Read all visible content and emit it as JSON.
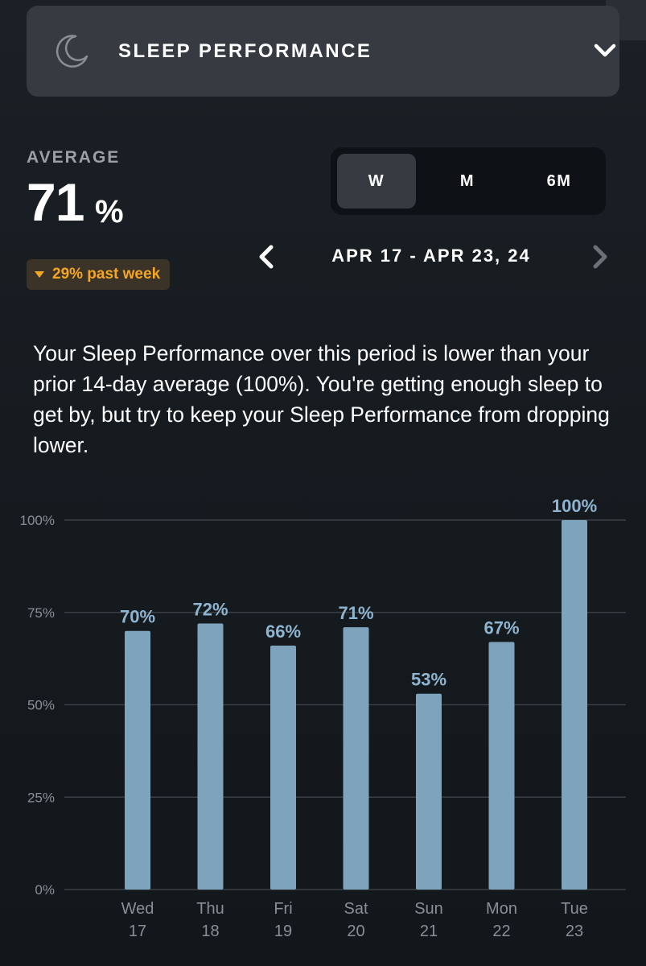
{
  "header": {
    "title": "SLEEP PERFORMANCE",
    "icon": "moon-icon"
  },
  "summary": {
    "label": "AVERAGE",
    "value": "71",
    "unit": "%",
    "change_text": "29% past week",
    "change_direction": "down",
    "change_color": "#f5a623"
  },
  "period_toggle": {
    "options": [
      "W",
      "M",
      "6M"
    ],
    "selected": "W"
  },
  "date_nav": {
    "range": "APR 17 - APR 23, 24"
  },
  "description": "Your Sleep Performance over this period is lower than your prior 14-day average (100%). You're getting enough sleep to get by, but try to keep your Sleep Performance from dropping lower.",
  "chart_data": {
    "type": "bar",
    "categories": [
      "Wed",
      "Thu",
      "Fri",
      "Sat",
      "Sun",
      "Mon",
      "Tue"
    ],
    "category_dates": [
      "17",
      "18",
      "19",
      "20",
      "21",
      "22",
      "23"
    ],
    "values": [
      70,
      72,
      66,
      71,
      53,
      67,
      100
    ],
    "value_labels": [
      "70%",
      "72%",
      "66%",
      "71%",
      "53%",
      "67%",
      "100%"
    ],
    "ylim": [
      0,
      100
    ],
    "yticks": [
      0,
      25,
      50,
      75,
      100
    ],
    "ytick_labels": [
      "0%",
      "25%",
      "50%",
      "75%",
      "100%"
    ],
    "grid": true,
    "bar_color": "#7ea3bd",
    "title": "",
    "xlabel": "",
    "ylabel": ""
  }
}
